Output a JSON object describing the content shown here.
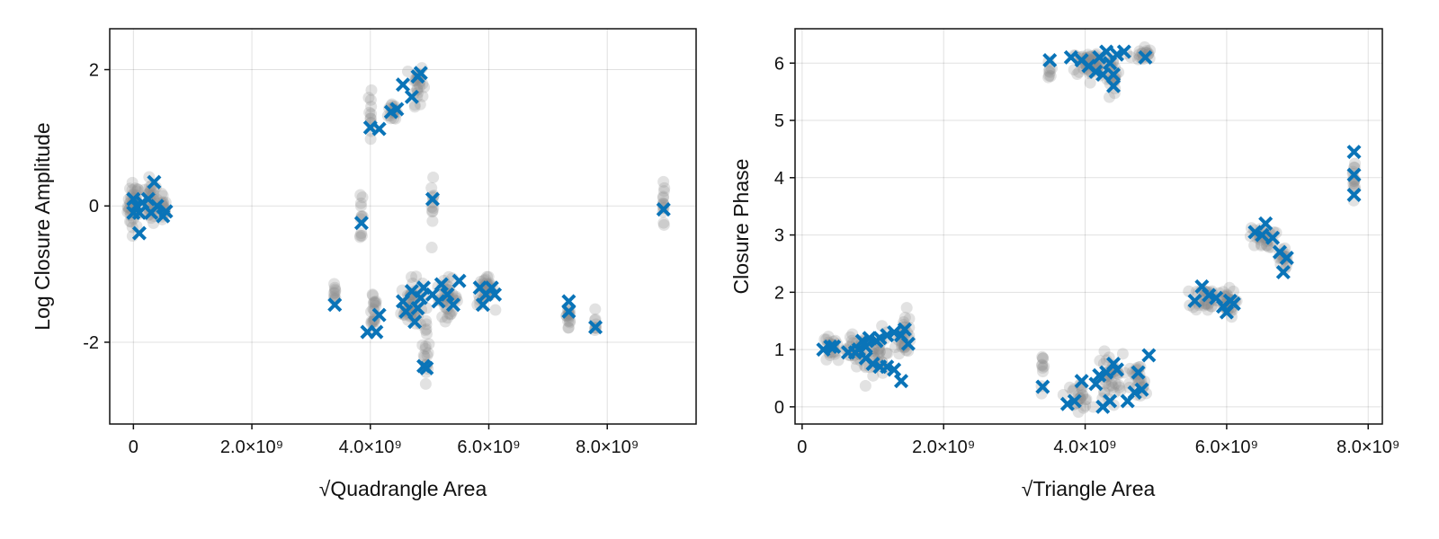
{
  "chart_data": [
    {
      "type": "scatter",
      "xlabel": "√Quadrangle Area",
      "ylabel": "Log Closure Amplitude",
      "xlim": [
        -400000000,
        9500000000
      ],
      "ylim": [
        -3.2,
        2.6
      ],
      "xticks": [
        0,
        2000000000,
        4000000000,
        6000000000,
        8000000000
      ],
      "xtick_labels": [
        "0",
        "2.0×10⁹",
        "4.0×10⁹",
        "6.0×10⁹",
        "8.0×10⁹"
      ],
      "yticks": [
        -2,
        0,
        2
      ],
      "ytick_labels": [
        "-2",
        "0",
        "2"
      ],
      "grid": true,
      "series": [
        {
          "marker": "circle",
          "color": "#8c8c8c",
          "clusters": [
            {
              "x": 0,
              "y": 0,
              "dx": 80000000,
              "dy": 0.28,
              "n": 45
            },
            {
              "x": 300000000,
              "y": 0.05,
              "dx": 90000000,
              "dy": 0.25,
              "n": 35
            },
            {
              "x": 500000000,
              "y": -0.05,
              "dx": 50000000,
              "dy": 0.2,
              "n": 15
            },
            {
              "x": 3400000000,
              "y": -1.3,
              "dx": 15000000,
              "dy": 0.12,
              "n": 10
            },
            {
              "x": 3850000000,
              "y": -0.1,
              "dx": 20000000,
              "dy": 0.4,
              "n": 12
            },
            {
              "x": 4000000000,
              "y": 1.3,
              "dx": 20000000,
              "dy": 0.45,
              "n": 12
            },
            {
              "x": 4050000000,
              "y": -1.5,
              "dx": 60000000,
              "dy": 0.3,
              "n": 20
            },
            {
              "x": 4400000000,
              "y": 1.4,
              "dx": 80000000,
              "dy": 0.15,
              "n": 18
            },
            {
              "x": 4800000000,
              "y": 1.8,
              "dx": 80000000,
              "dy": 0.25,
              "n": 25
            },
            {
              "x": 4700000000,
              "y": -1.45,
              "dx": 150000000,
              "dy": 0.3,
              "n": 50
            },
            {
              "x": 4950000000,
              "y": -2.1,
              "dx": 40000000,
              "dy": 0.4,
              "n": 18
            },
            {
              "x": 5050000000,
              "y": 0.0,
              "dx": 20000000,
              "dy": 0.3,
              "n": 12
            },
            {
              "x": 5300000000,
              "y": -1.35,
              "dx": 150000000,
              "dy": 0.22,
              "n": 40
            },
            {
              "x": 5950000000,
              "y": -1.25,
              "dx": 120000000,
              "dy": 0.18,
              "n": 35
            },
            {
              "x": 7350000000,
              "y": -1.6,
              "dx": 30000000,
              "dy": 0.28,
              "n": 16
            },
            {
              "x": 7800000000,
              "y": -1.75,
              "dx": 15000000,
              "dy": 0.12,
              "n": 8
            },
            {
              "x": 8950000000,
              "y": 0.0,
              "dx": 15000000,
              "dy": 0.28,
              "n": 14
            }
          ]
        },
        {
          "marker": "x",
          "color": "#0a74b8",
          "points": [
            [
              0,
              0.1
            ],
            [
              50000000,
              0.0
            ],
            [
              100000000,
              -0.1
            ],
            [
              150000000,
              0.05
            ],
            [
              0,
              -0.1
            ],
            [
              100000000,
              -0.4
            ],
            [
              350000000,
              0.35
            ],
            [
              400000000,
              0.0
            ],
            [
              300000000,
              -0.1
            ],
            [
              500000000,
              -0.15
            ],
            [
              550000000,
              -0.08
            ],
            [
              250000000,
              0.1
            ],
            [
              3400000000,
              -1.45
            ],
            [
              3850000000,
              -0.25
            ],
            [
              3950000000,
              -1.85
            ],
            [
              4100000000,
              -1.85
            ],
            [
              4000000000,
              1.15
            ],
            [
              4150000000,
              1.13
            ],
            [
              4150000000,
              -1.6
            ],
            [
              4350000000,
              1.38
            ],
            [
              4450000000,
              1.42
            ],
            [
              4550000000,
              1.78
            ],
            [
              4700000000,
              1.6
            ],
            [
              4800000000,
              1.9
            ],
            [
              4850000000,
              1.95
            ],
            [
              4550000000,
              -1.4
            ],
            [
              4600000000,
              -1.55
            ],
            [
              4700000000,
              -1.25
            ],
            [
              4750000000,
              -1.7
            ],
            [
              4800000000,
              -1.5
            ],
            [
              4850000000,
              -1.35
            ],
            [
              4900000000,
              -1.2
            ],
            [
              4900000000,
              -2.35
            ],
            [
              4950000000,
              -2.38
            ],
            [
              5050000000,
              0.1
            ],
            [
              5050000000,
              -1.3
            ],
            [
              5150000000,
              -1.4
            ],
            [
              5200000000,
              -1.15
            ],
            [
              5300000000,
              -1.3
            ],
            [
              5400000000,
              -1.45
            ],
            [
              5500000000,
              -1.1
            ],
            [
              5850000000,
              -1.2
            ],
            [
              5900000000,
              -1.45
            ],
            [
              5950000000,
              -1.3
            ],
            [
              6050000000,
              -1.2
            ],
            [
              6100000000,
              -1.3
            ],
            [
              7350000000,
              -1.4
            ],
            [
              7350000000,
              -1.55
            ],
            [
              7800000000,
              -1.78
            ],
            [
              8950000000,
              -0.05
            ]
          ]
        }
      ]
    },
    {
      "type": "scatter",
      "xlabel": "√Triangle Area",
      "ylabel": "Closure Phase",
      "xlim": [
        -100000000,
        8200000000
      ],
      "ylim": [
        -0.3,
        6.6
      ],
      "xticks": [
        0,
        2000000000,
        4000000000,
        6000000000,
        8000000000
      ],
      "xtick_labels": [
        "0",
        "2.0×10⁹",
        "4.0×10⁹",
        "6.0×10⁹",
        "8.0×10⁹"
      ],
      "yticks": [
        0,
        1,
        2,
        3,
        4,
        5,
        6
      ],
      "ytick_labels": [
        "0",
        "1",
        "2",
        "3",
        "4",
        "5",
        "6"
      ],
      "grid": true,
      "series": [
        {
          "marker": "circle",
          "color": "#8c8c8c",
          "clusters": [
            {
              "x": 400000000,
              "y": 1.0,
              "dx": 100000000,
              "dy": 0.2,
              "n": 20
            },
            {
              "x": 750000000,
              "y": 0.95,
              "dx": 150000000,
              "dy": 0.25,
              "n": 30
            },
            {
              "x": 1100000000,
              "y": 0.9,
              "dx": 150000000,
              "dy": 0.35,
              "n": 35
            },
            {
              "x": 1450000000,
              "y": 1.3,
              "dx": 80000000,
              "dy": 0.3,
              "n": 30
            },
            {
              "x": 3400000000,
              "y": 0.6,
              "dx": 20000000,
              "dy": 0.3,
              "n": 10
            },
            {
              "x": 3900000000,
              "y": 0.2,
              "dx": 150000000,
              "dy": 0.2,
              "n": 25
            },
            {
              "x": 4350000000,
              "y": 0.5,
              "dx": 150000000,
              "dy": 0.35,
              "n": 40
            },
            {
              "x": 4750000000,
              "y": 0.4,
              "dx": 100000000,
              "dy": 0.3,
              "n": 25
            },
            {
              "x": 4100000000,
              "y": 6.0,
              "dx": 250000000,
              "dy": 0.2,
              "n": 60
            },
            {
              "x": 4400000000,
              "y": 5.7,
              "dx": 80000000,
              "dy": 0.3,
              "n": 20
            },
            {
              "x": 4800000000,
              "y": 6.15,
              "dx": 120000000,
              "dy": 0.12,
              "n": 20
            },
            {
              "x": 3500000000,
              "y": 5.9,
              "dx": 20000000,
              "dy": 0.15,
              "n": 8
            },
            {
              "x": 5700000000,
              "y": 1.9,
              "dx": 150000000,
              "dy": 0.18,
              "n": 35
            },
            {
              "x": 6000000000,
              "y": 1.8,
              "dx": 100000000,
              "dy": 0.2,
              "n": 30
            },
            {
              "x": 6500000000,
              "y": 2.95,
              "dx": 150000000,
              "dy": 0.15,
              "n": 30
            },
            {
              "x": 6800000000,
              "y": 2.6,
              "dx": 50000000,
              "dy": 0.2,
              "n": 18
            },
            {
              "x": 7800000000,
              "y": 4.0,
              "dx": 15000000,
              "dy": 0.3,
              "n": 14
            }
          ]
        },
        {
          "marker": "x",
          "color": "#0a74b8",
          "points": [
            [
              300000000,
              1.0
            ],
            [
              400000000,
              1.05
            ],
            [
              450000000,
              1.05
            ],
            [
              650000000,
              0.95
            ],
            [
              750000000,
              0.95
            ],
            [
              800000000,
              1.0
            ],
            [
              850000000,
              1.15
            ],
            [
              900000000,
              1.05
            ],
            [
              950000000,
              1.2
            ],
            [
              1050000000,
              1.15
            ],
            [
              1100000000,
              1.2
            ],
            [
              1200000000,
              1.25
            ],
            [
              1300000000,
              1.3
            ],
            [
              1400000000,
              1.25
            ],
            [
              1450000000,
              1.35
            ],
            [
              1500000000,
              1.1
            ],
            [
              1000000000,
              0.75
            ],
            [
              1200000000,
              0.7
            ],
            [
              1300000000,
              0.65
            ],
            [
              1400000000,
              0.45
            ],
            [
              900000000,
              0.85
            ],
            [
              1100000000,
              0.7
            ],
            [
              3400000000,
              0.35
            ],
            [
              3750000000,
              0.05
            ],
            [
              3850000000,
              0.1
            ],
            [
              3950000000,
              0.45
            ],
            [
              4150000000,
              0.4
            ],
            [
              4200000000,
              0.55
            ],
            [
              4250000000,
              0.0
            ],
            [
              4300000000,
              0.6
            ],
            [
              4350000000,
              0.1
            ],
            [
              4400000000,
              0.75
            ],
            [
              4450000000,
              0.65
            ],
            [
              4600000000,
              0.1
            ],
            [
              4700000000,
              0.25
            ],
            [
              4750000000,
              0.6
            ],
            [
              4800000000,
              0.3
            ],
            [
              4900000000,
              0.9
            ],
            [
              3500000000,
              6.05
            ],
            [
              3800000000,
              6.1
            ],
            [
              3950000000,
              6.05
            ],
            [
              4050000000,
              5.95
            ],
            [
              4150000000,
              5.85
            ],
            [
              4200000000,
              6.1
            ],
            [
              4250000000,
              5.8
            ],
            [
              4300000000,
              6.2
            ],
            [
              4350000000,
              6.0
            ],
            [
              4400000000,
              5.6
            ],
            [
              4400000000,
              5.8
            ],
            [
              4450000000,
              6.15
            ],
            [
              4550000000,
              6.2
            ],
            [
              4850000000,
              6.1
            ],
            [
              5550000000,
              1.85
            ],
            [
              5650000000,
              2.1
            ],
            [
              5750000000,
              1.95
            ],
            [
              5850000000,
              1.9
            ],
            [
              5950000000,
              1.75
            ],
            [
              6000000000,
              1.65
            ],
            [
              6050000000,
              1.85
            ],
            [
              6100000000,
              1.8
            ],
            [
              6400000000,
              3.05
            ],
            [
              6500000000,
              3.0
            ],
            [
              6550000000,
              3.2
            ],
            [
              6650000000,
              2.95
            ],
            [
              6750000000,
              2.7
            ],
            [
              6800000000,
              2.35
            ],
            [
              6850000000,
              2.6
            ],
            [
              7800000000,
              4.45
            ],
            [
              7800000000,
              4.05
            ],
            [
              7800000000,
              3.7
            ]
          ]
        }
      ]
    }
  ]
}
